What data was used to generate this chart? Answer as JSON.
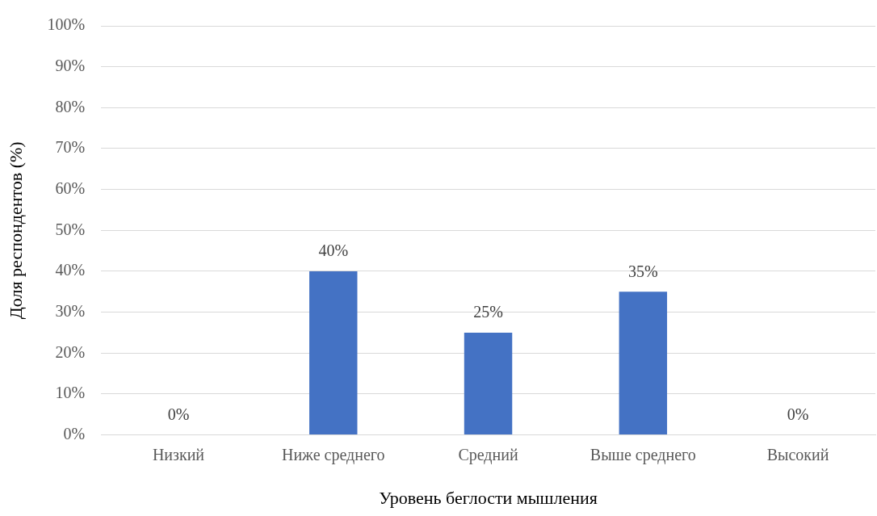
{
  "chart_data": {
    "type": "bar",
    "xlabel": "Уровень беглости мышления",
    "ylabel": "Доля респондентов (%)",
    "categories": [
      "Низкий",
      "Ниже среднего",
      "Средний",
      "Выше среднего",
      "Высокий"
    ],
    "values": [
      0,
      40,
      25,
      35,
      0
    ],
    "color": "#4472c4",
    "value_labels": [
      "0%",
      "40%",
      "25%",
      "35%",
      "0%"
    ],
    "ylim": [
      0,
      100
    ],
    "yticks": [
      {
        "value": 0,
        "label": "0%"
      },
      {
        "value": 10,
        "label": "10%"
      },
      {
        "value": 20,
        "label": "20%"
      },
      {
        "value": 30,
        "label": "30%"
      },
      {
        "value": 40,
        "label": "40%"
      },
      {
        "value": 50,
        "label": "50%"
      },
      {
        "value": 60,
        "label": "60%"
      },
      {
        "value": 70,
        "label": "70%"
      },
      {
        "value": 80,
        "label": "80%"
      },
      {
        "value": 90,
        "label": "90%"
      },
      {
        "value": 100,
        "label": "100%"
      }
    ],
    "grid": "y",
    "legend": false
  }
}
